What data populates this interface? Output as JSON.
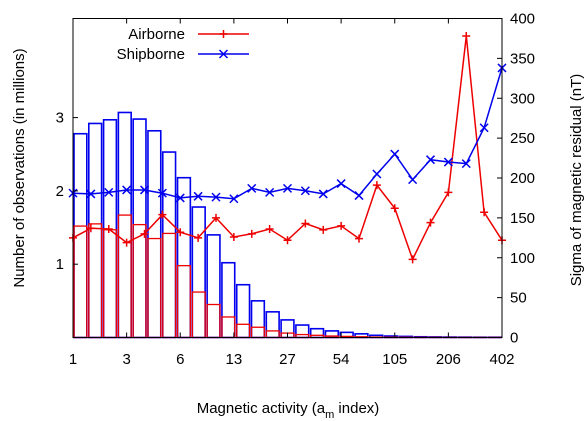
{
  "chart_data": {
    "type": "line",
    "xlabel_main": "Magnetic activity (a",
    "xlabel_sub": "m",
    "xlabel_tail": " index)",
    "ylabel_left": "Number of observations (in millions)",
    "ylabel_right": "Sigma of magnetic residual (nT)",
    "x_tick_labels": [
      "1",
      "3",
      "6",
      "13",
      "27",
      "54",
      "105",
      "206",
      "402"
    ],
    "y_right_ticks": [
      0,
      50,
      100,
      150,
      200,
      250,
      300,
      350,
      400
    ],
    "y_left_ticks": [
      1,
      2,
      3
    ],
    "ylim_right": [
      0,
      400
    ],
    "n_bins": 29,
    "legend": {
      "placement": "top-left"
    },
    "series": [
      {
        "name": "Airborne",
        "color": "#ee0000",
        "marker": "plus",
        "sigma": [
          125,
          137,
          136,
          119,
          130,
          154,
          132,
          125,
          150,
          126,
          130,
          136,
          122,
          143,
          135,
          140,
          124,
          191,
          162,
          98,
          144,
          182,
          378,
          157,
          122
        ],
        "counts_millions": [
          1.52,
          1.55,
          1.47,
          1.67,
          1.54,
          1.35,
          1.42,
          0.98,
          0.62,
          0.45,
          0.28,
          0.18,
          0.14,
          0.09,
          0.06,
          0.04,
          0.03,
          0.02,
          0.015,
          0.01,
          0.006,
          0.004,
          0.003,
          0.002,
          0.002,
          0.001,
          0.001,
          0.001,
          0.001
        ]
      },
      {
        "name": "Shipborne",
        "color": "#0000ee",
        "marker": "cross",
        "sigma": [
          181,
          180,
          182,
          185,
          185,
          181,
          175,
          177,
          176,
          174,
          187,
          182,
          187,
          184,
          180,
          193,
          178,
          205,
          230,
          198,
          223,
          220,
          218,
          263,
          338
        ],
        "counts_millions": [
          2.78,
          2.92,
          2.97,
          3.07,
          2.98,
          2.82,
          2.53,
          2.18,
          1.78,
          1.4,
          1.02,
          0.72,
          0.5,
          0.35,
          0.24,
          0.17,
          0.12,
          0.09,
          0.07,
          0.05,
          0.03,
          0.02,
          0.015,
          0.01,
          0.008,
          0.006,
          0.005,
          0.004,
          0.004
        ]
      }
    ]
  }
}
